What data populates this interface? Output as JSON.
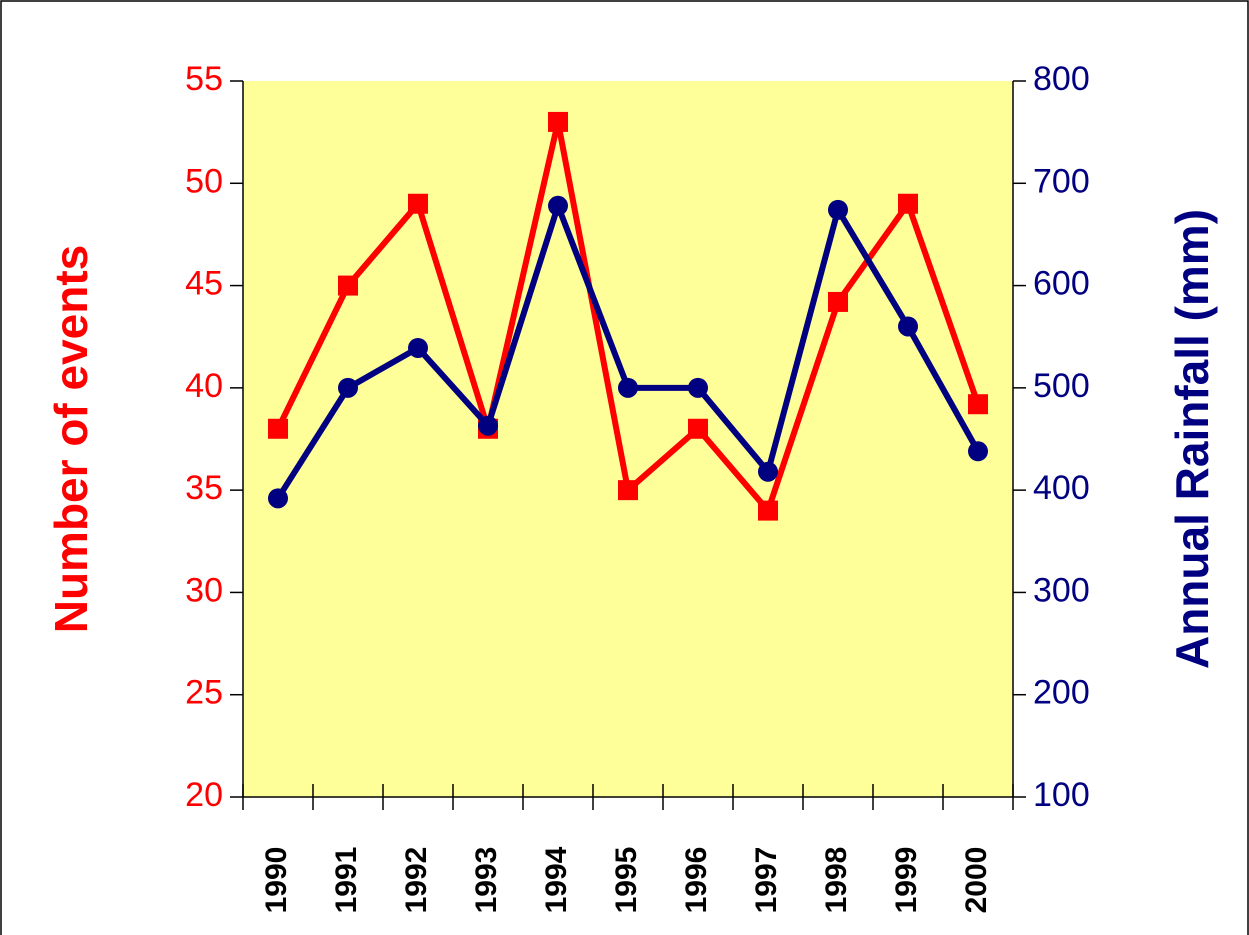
{
  "chart_data": {
    "type": "line",
    "ylabel": "Number of events",
    "y2label": "Annual Rainfall (mm)",
    "categories": [
      "1990",
      "1991",
      "1992",
      "1993",
      "1994",
      "1995",
      "1996",
      "1997",
      "1998",
      "1999",
      "2000"
    ],
    "series": [
      {
        "name": "Number of events",
        "color": "#ff0000",
        "marker": "square",
        "values": [
          38,
          45,
          49,
          38,
          53,
          35,
          38,
          34,
          44.2,
          49,
          39.2
        ]
      },
      {
        "name": "Annual Rainfall (mm)",
        "color": "#000080",
        "marker": "circle",
        "axis": "y2",
        "values": [
          392,
          500,
          539,
          463,
          678,
          500,
          500,
          418,
          674,
          560,
          438
        ]
      }
    ],
    "ylim": [
      20,
      55
    ],
    "yticks": [
      20,
      25,
      30,
      35,
      40,
      45,
      50,
      55
    ],
    "y2lim": [
      100,
      800
    ],
    "y2ticks": [
      100,
      200,
      300,
      400,
      500,
      600,
      700,
      800
    ],
    "plot_background": "#ffff99"
  }
}
